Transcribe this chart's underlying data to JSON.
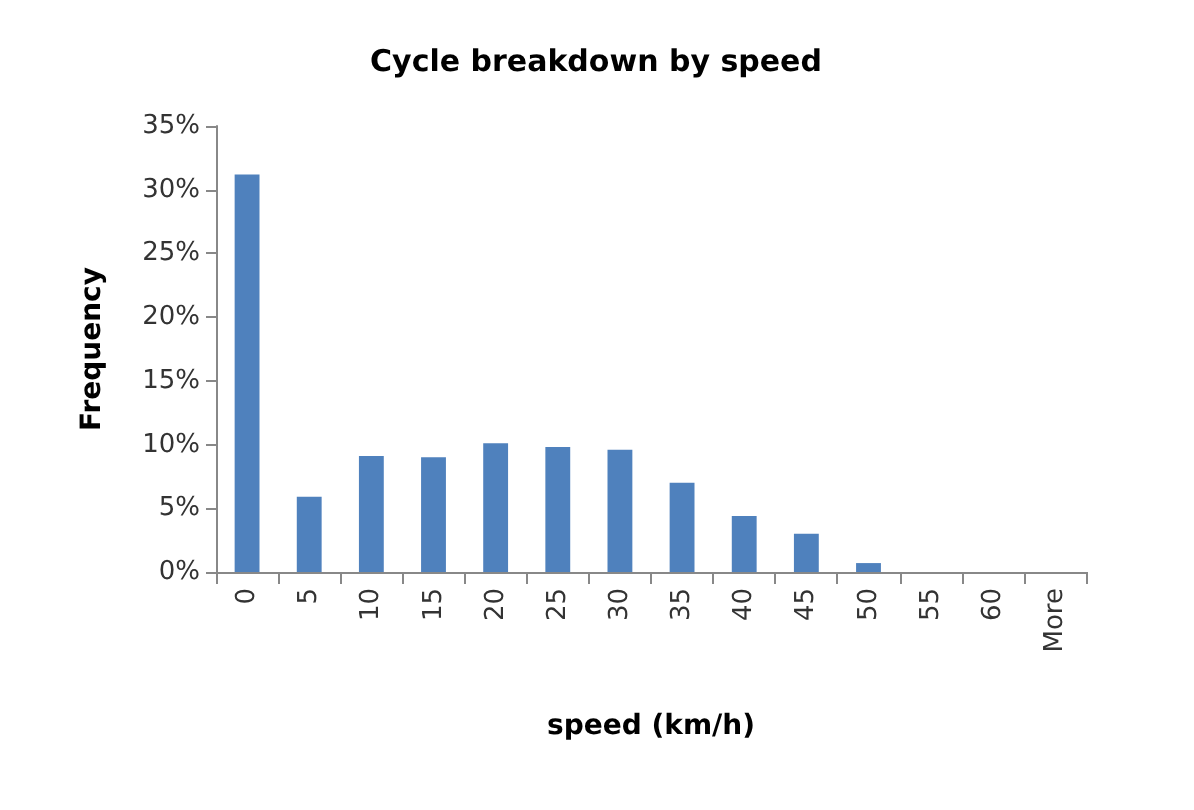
{
  "chart_data": {
    "type": "bar",
    "title": "Cycle breakdown by speed",
    "xlabel": "speed (km/h)",
    "ylabel": "Frequency",
    "categories": [
      "0",
      "5",
      "10",
      "15",
      "20",
      "25",
      "30",
      "35",
      "40",
      "45",
      "50",
      "55",
      "60",
      "More"
    ],
    "values": [
      31.2,
      5.9,
      9.1,
      9.0,
      10.1,
      9.8,
      9.6,
      7.0,
      4.4,
      3.0,
      0.7,
      0,
      0,
      0
    ],
    "color": "#4f81bd",
    "ylim": [
      0,
      35
    ],
    "yticks": [
      {
        "value": 0,
        "label": "0%"
      },
      {
        "value": 5,
        "label": "5%"
      },
      {
        "value": 10,
        "label": "10%"
      },
      {
        "value": 15,
        "label": "15%"
      },
      {
        "value": 20,
        "label": "20%"
      },
      {
        "value": 25,
        "label": "25%"
      },
      {
        "value": 30,
        "label": "30%"
      },
      {
        "value": 35,
        "label": "35%"
      }
    ],
    "grid": false
  }
}
